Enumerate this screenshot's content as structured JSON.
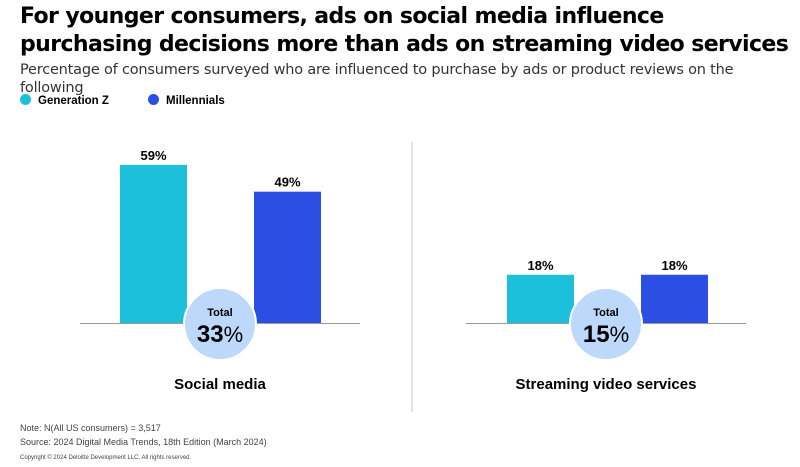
{
  "title": "For younger consumers, ads on social media influence purchasing decisions more than ads on streaming video services",
  "subtitle": "Percentage of consumers surveyed who are influenced to purchase by ads or product reviews on the following",
  "legend": [
    {
      "label": "Generation Z",
      "color": "#1CC0DB"
    },
    {
      "label": "Millennials",
      "color": "#2B4FE3"
    }
  ],
  "chart_data": {
    "type": "bar",
    "title": "For younger consumers, ads on social media influence purchasing decisions more than ads on streaming video services",
    "categories": [
      "Social media",
      "Streaming video services"
    ],
    "series": [
      {
        "name": "Generation Z",
        "values": [
          59,
          18
        ],
        "labels": [
          "59%",
          "18%"
        ],
        "color": "#1CC0DB"
      },
      {
        "name": "Millennials",
        "values": [
          49,
          18
        ],
        "labels": [
          "49%",
          "18%"
        ],
        "color": "#2B4FE3"
      }
    ],
    "totals": [
      {
        "label": "Total",
        "value": "33",
        "unit": "%"
      },
      {
        "label": "Total",
        "value": "15",
        "unit": "%"
      }
    ],
    "ylim": [
      0,
      100
    ],
    "xlabel": "",
    "ylabel": "",
    "grid": false,
    "legend": "top-left"
  },
  "footer": {
    "note": "Note: N(All US consumers) = 3,517",
    "source": "Source: 2024 Digital Media Trends, 18th Edition (March 2024)",
    "copyright": "Copyright © 2024 Deloitte Development LLC. All rights reserved."
  }
}
